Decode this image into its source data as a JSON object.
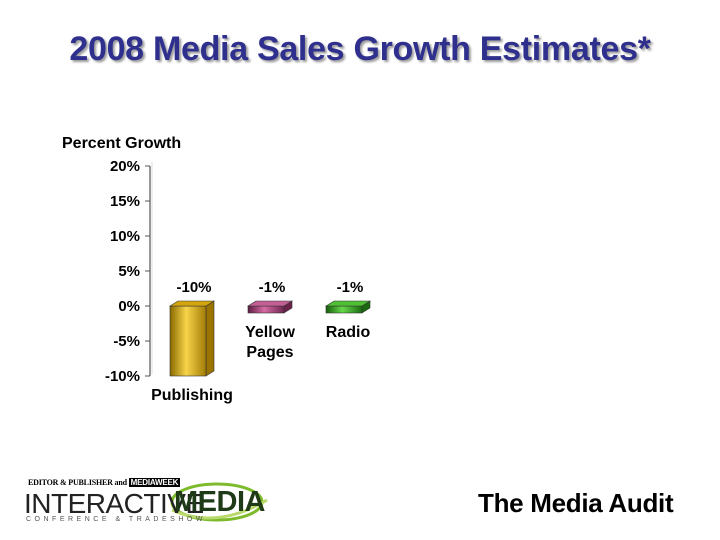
{
  "slide": {
    "title": "2008 Media Sales Growth Estimates*",
    "source": "The Media Audit"
  },
  "logo": {
    "editor_publisher": "EDITOR & PUBLISHER",
    "and_word": "and",
    "mediaweek": "MEDIAWEEK",
    "interactive": "INTERACTIVE",
    "media": "MEDIA",
    "tagline": "CONFERENCE & TRADESHOW",
    "swoosh_color": "#7dbb2d"
  },
  "chart_data": {
    "type": "bar",
    "title": "2008 Media Sales Growth Estimates*",
    "ylabel": "Percent Growth",
    "xlabel": "",
    "ylim": [
      -10,
      20
    ],
    "yticks": [
      20,
      15,
      10,
      5,
      0,
      -5,
      -10
    ],
    "ytick_labels": [
      "20%",
      "15%",
      "10%",
      "5%",
      "0%",
      "-5%",
      "-10%"
    ],
    "categories": [
      {
        "label_lines": [
          "Publishing"
        ],
        "name": "Publishing"
      },
      {
        "label_lines": [
          "Yellow",
          "Pages"
        ],
        "name": "Yellow Pages"
      },
      {
        "label_lines": [
          "Radio"
        ],
        "name": "Radio"
      }
    ],
    "values": [
      -10,
      -1,
      -1
    ],
    "data_labels": [
      "-10%",
      "-1%",
      "-1%"
    ],
    "colors": [
      "#e6b81c",
      "#b0447e",
      "#35a51e"
    ],
    "grid": false,
    "legend": "none"
  }
}
